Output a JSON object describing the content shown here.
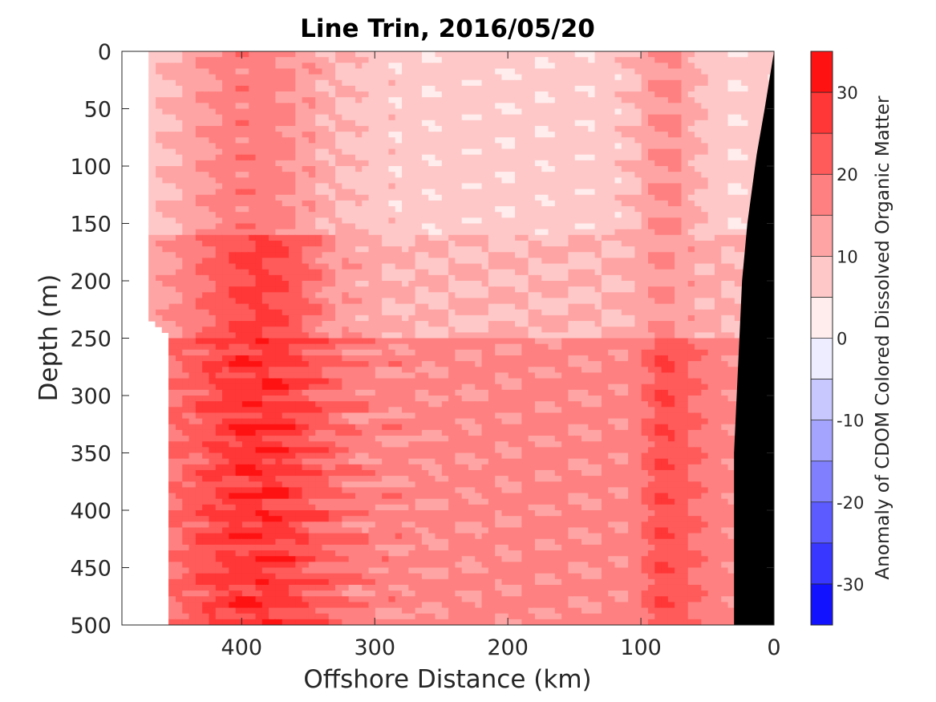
{
  "chart_data": {
    "type": "heatmap",
    "title": "Line Trin, 2016/05/20",
    "xlabel": "Offshore Distance (km)",
    "ylabel": "Depth (m)",
    "colorbar_label": "Anomaly of CDOM Colored Dissolved Organic Matter",
    "x_axis": {
      "range": [
        490,
        0
      ],
      "reversed": true,
      "ticks": [
        400,
        300,
        200,
        100,
        0
      ],
      "tick_labels": [
        "400",
        "300",
        "200",
        "100",
        "0"
      ]
    },
    "y_axis": {
      "range": [
        0,
        500
      ],
      "reversed": true,
      "ticks": [
        0,
        50,
        100,
        150,
        200,
        250,
        300,
        350,
        400,
        450,
        500
      ],
      "tick_labels": [
        "0",
        "50",
        "100",
        "150",
        "200",
        "250",
        "300",
        "350",
        "400",
        "450",
        "500"
      ]
    },
    "colorbar": {
      "range": [
        -35,
        35
      ],
      "level_step": 5,
      "ticks": [
        30,
        20,
        10,
        0,
        -10,
        -20,
        -30
      ],
      "tick_labels": [
        "30",
        "20",
        "10",
        "0",
        "-10",
        "-20",
        "-30"
      ],
      "colormap": "blue-white-red",
      "low_color": "#0000ff",
      "mid_color": "#ffffff",
      "high_color": "#ff0000"
    },
    "grid": false,
    "land_mask_color": "#000000",
    "land_mask_boundary": {
      "distance_km": [
        0,
        7,
        13,
        20,
        24,
        26,
        28,
        30,
        30
      ],
      "depth_m": [
        0,
        50,
        90,
        150,
        200,
        250,
        300,
        350,
        500
      ]
    },
    "data_western_edge": {
      "depth_m": [
        0,
        230,
        250,
        500
      ],
      "distance_km": [
        470,
        470,
        455,
        455
      ]
    },
    "depth_bands": [
      {
        "depth_range": [
          0,
          160
        ],
        "anomaly_offshore_400km": 18,
        "anomaly_mid_shelf_150km": 7,
        "anomaly_near_80km": 16
      },
      {
        "depth_range": [
          160,
          250
        ],
        "anomaly_offshore_400km": 26,
        "anomaly_mid_shelf_150km": 10,
        "anomaly_near_80km": 15
      },
      {
        "depth_range": [
          250,
          500
        ],
        "anomaly_offshore_400km": 28,
        "anomaly_mid_shelf_150km": 16,
        "anomaly_near_80km": 24
      }
    ]
  }
}
